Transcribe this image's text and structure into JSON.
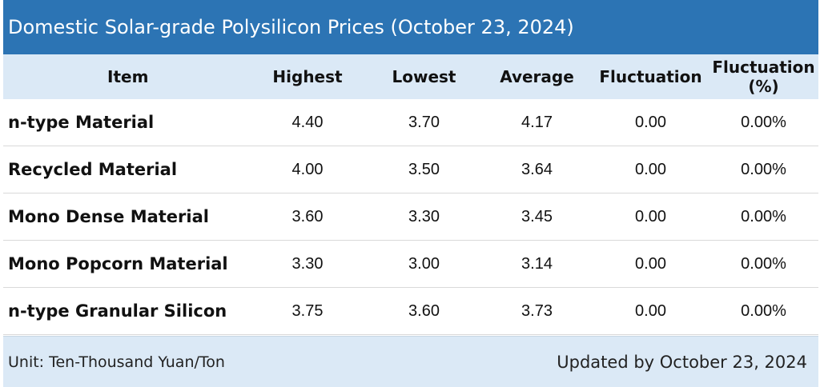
{
  "title": "Domestic Solar-grade Polysilicon Prices (October 23, 2024)",
  "columns": [
    "Item",
    "Highest",
    "Lowest",
    "Average",
    "Fluctuation",
    "Fluctuation\n(%)"
  ],
  "rows": [
    {
      "item": "n-type Material",
      "highest": "4.40",
      "lowest": "3.70",
      "average": "4.17",
      "fluctuation": "0.00",
      "fluctuation_pct": "0.00%"
    },
    {
      "item": "Recycled Material",
      "highest": "4.00",
      "lowest": "3.50",
      "average": "3.64",
      "fluctuation": "0.00",
      "fluctuation_pct": "0.00%"
    },
    {
      "item": "Mono Dense Material",
      "highest": "3.60",
      "lowest": "3.30",
      "average": "3.45",
      "fluctuation": "0.00",
      "fluctuation_pct": "0.00%"
    },
    {
      "item": "Mono Popcorn Material",
      "highest": "3.30",
      "lowest": "3.00",
      "average": "3.14",
      "fluctuation": "0.00",
      "fluctuation_pct": "0.00%"
    },
    {
      "item": "n-type Granular Silicon",
      "highest": "3.75",
      "lowest": "3.60",
      "average": "3.73",
      "fluctuation": "0.00",
      "fluctuation_pct": "0.00%"
    }
  ],
  "footer": {
    "unit": "Unit: Ten-Thousand Yuan/Ton",
    "updated": "Updated by October 23, 2024"
  },
  "colors": {
    "title_bg": "#2c74b4",
    "header_bg": "#dbe9f6",
    "footer_bg": "#dbe9f6"
  }
}
